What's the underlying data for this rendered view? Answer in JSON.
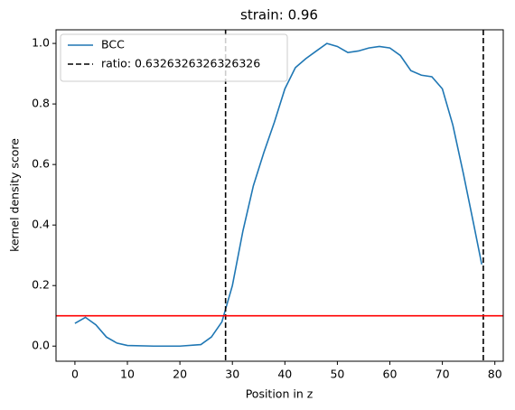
{
  "chart_data": {
    "type": "line",
    "title": "strain: 0.96",
    "xlabel": "Position in z",
    "ylabel": "kernel density score",
    "x": [
      0,
      2,
      4,
      6,
      8,
      10,
      15,
      20,
      24,
      26,
      28,
      30,
      32,
      34,
      36,
      38,
      40,
      42,
      44,
      46,
      48,
      50,
      52,
      54,
      56,
      58,
      60,
      62,
      64,
      66,
      68,
      70,
      72,
      74,
      76,
      77.5
    ],
    "series": [
      {
        "name": "BCC",
        "color": "#1f77b4",
        "values": [
          0.075,
          0.095,
          0.07,
          0.03,
          0.01,
          0.002,
          0,
          0,
          0.005,
          0.03,
          0.08,
          0.2,
          0.38,
          0.53,
          0.64,
          0.74,
          0.85,
          0.92,
          0.95,
          0.975,
          1.0,
          0.99,
          0.97,
          0.975,
          0.985,
          0.99,
          0.985,
          0.96,
          0.91,
          0.895,
          0.89,
          0.85,
          0.73,
          0.57,
          0.4,
          0.27
        ]
      }
    ],
    "vlines": {
      "name": "ratio: 0.6326326326326326",
      "color": "#000000",
      "values": [
        28.7,
        77.8
      ]
    },
    "hline": {
      "value": 0.1,
      "color": "#ff0000"
    },
    "xlim": [
      -3.6,
      81.6
    ],
    "xticks": [
      0,
      10,
      20,
      30,
      40,
      50,
      60,
      70,
      80
    ],
    "ylim": [
      -0.05,
      1.045
    ],
    "yticks": [
      {
        "value": 0,
        "label": "0.0"
      },
      0.2,
      0.4,
      0.6,
      0.8,
      {
        "value": 1,
        "label": "1.0"
      }
    ],
    "legend": "upper left"
  }
}
